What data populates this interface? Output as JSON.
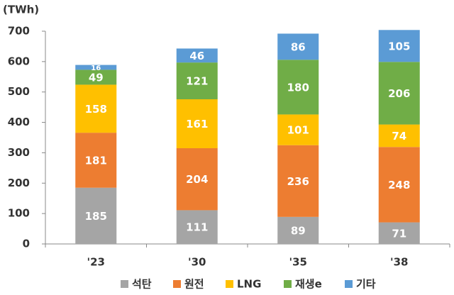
{
  "chart_data": {
    "type": "stacked_bar",
    "y_label": "(TWh)",
    "categories": [
      "'23",
      "'30",
      "'35",
      "'38"
    ],
    "series": [
      {
        "name": "석탄",
        "color": "#a5a5a5",
        "values": [
          185,
          111,
          89,
          71
        ]
      },
      {
        "name": "원전",
        "color": "#ed7d31",
        "values": [
          181,
          204,
          236,
          248
        ]
      },
      {
        "name": "LNG",
        "color": "#ffc000",
        "values": [
          158,
          161,
          101,
          74
        ]
      },
      {
        "name": "재생e",
        "color": "#70ad47",
        "values": [
          49,
          121,
          180,
          206
        ]
      },
      {
        "name": "기타",
        "color": "#5b9bd5",
        "values": [
          16,
          46,
          86,
          105
        ]
      }
    ],
    "ylim": [
      0,
      700
    ],
    "yticks": [
      0,
      100,
      200,
      300,
      400,
      500,
      600,
      700
    ]
  }
}
